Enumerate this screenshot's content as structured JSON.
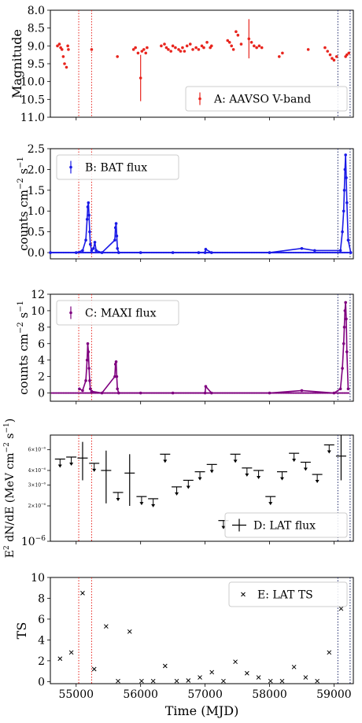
{
  "chart_data": [
    {
      "type": "scatter",
      "panel": "A",
      "legend": "A: AAVSO V-band",
      "legend_position": "lower-right",
      "ylabel": "Magnitude",
      "ylim": [
        11.0,
        8.0
      ],
      "y_inverted": true,
      "yticks": [
        8.0,
        8.5,
        9.0,
        9.5,
        10.0,
        10.5,
        11.0
      ],
      "ytick_labels": [
        "8.0",
        "8.5",
        "9.0",
        "9.5",
        "10.0",
        "10.5",
        "11.0"
      ],
      "color": "#e8251e",
      "series": [
        {
          "name": "A: AAVSO V-band",
          "x": [
            54710,
            54740,
            54760,
            54780,
            54800,
            54820,
            54850,
            54870,
            54880,
            55240,
            55640,
            55890,
            55920,
            55960,
            56000,
            56020,
            56050,
            56080,
            56100,
            56320,
            56370,
            56400,
            56430,
            56470,
            56500,
            56540,
            56590,
            56620,
            56650,
            56680,
            56720,
            56770,
            56810,
            56860,
            56900,
            56950,
            56980,
            57030,
            57080,
            57100,
            57350,
            57380,
            57410,
            57440,
            57480,
            57510,
            57560,
            57680,
            57720,
            57760,
            57800,
            57840,
            57880,
            58150,
            58200,
            58600,
            58860,
            58900,
            58940,
            58970,
            59000,
            59040,
            59180,
            59200,
            59230
          ],
          "y": [
            9.0,
            8.95,
            9.05,
            9.1,
            9.3,
            9.5,
            9.6,
            9.0,
            9.1,
            9.1,
            9.3,
            9.1,
            9.05,
            9.2,
            9.9,
            9.15,
            9.1,
            9.2,
            9.05,
            9.0,
            8.95,
            9.05,
            9.1,
            9.15,
            9.0,
            9.05,
            9.1,
            9.15,
            9.05,
            9.15,
            9.0,
            8.95,
            9.1,
            9.05,
            9.1,
            9.0,
            9.05,
            8.9,
            9.05,
            9.0,
            8.85,
            8.9,
            9.0,
            9.1,
            8.6,
            8.7,
            8.95,
            8.8,
            8.9,
            9.0,
            9.05,
            9.0,
            9.05,
            9.3,
            9.2,
            9.1,
            9.05,
            9.15,
            9.25,
            9.35,
            9.4,
            9.3,
            9.3,
            9.25,
            9.2
          ],
          "errors": [
            0,
            0,
            0,
            0,
            0,
            0,
            0,
            0,
            0,
            0,
            0,
            0,
            0,
            0,
            0.65,
            0,
            0,
            0,
            0,
            0,
            0,
            0,
            0,
            0,
            0,
            0,
            0,
            0,
            0,
            0,
            0,
            0,
            0,
            0,
            0,
            0,
            0,
            0,
            0,
            0,
            0,
            0,
            0,
            0,
            0,
            0,
            0,
            0.55,
            0,
            0,
            0,
            0,
            0,
            0,
            0,
            0,
            0,
            0,
            0,
            0,
            0,
            0,
            0,
            0,
            0
          ]
        }
      ]
    },
    {
      "type": "line",
      "panel": "B",
      "legend": "B: BAT flux",
      "legend_position": "top-left",
      "ylabel": "counts cm^-2 s^-1",
      "ylim": [
        -0.15,
        2.5
      ],
      "yticks": [
        0.0,
        0.5,
        1.0,
        1.5,
        2.0,
        2.5
      ],
      "ytick_labels": [
        "0.0",
        "0.5",
        "1.0",
        "1.5",
        "2.0",
        "2.5"
      ],
      "color": "#1a1ae6",
      "series": [
        {
          "name": "B: BAT flux",
          "x": [
            54600,
            55000,
            55100,
            55150,
            55170,
            55180,
            55190,
            55200,
            55210,
            55220,
            55240,
            55270,
            55290,
            55310,
            55400,
            55600,
            55610,
            55620,
            55630,
            55640,
            55660,
            56000,
            56500,
            56900,
            57000,
            57010,
            57100,
            58000,
            58500,
            58700,
            59100,
            59130,
            59150,
            59160,
            59170,
            59180,
            59190,
            59200,
            59220,
            59260
          ],
          "y": [
            0.0,
            0.0,
            0.05,
            0.3,
            0.8,
            1.1,
            1.2,
            0.9,
            0.5,
            0.2,
            0.05,
            0.1,
            0.25,
            0.05,
            0.0,
            0.3,
            0.6,
            0.7,
            0.4,
            0.1,
            0.0,
            0.0,
            0.0,
            0.0,
            0.0,
            0.08,
            0.0,
            0.0,
            0.1,
            0.05,
            0.05,
            0.5,
            1.0,
            1.5,
            2.0,
            2.35,
            1.8,
            1.2,
            0.3,
            0.0
          ]
        }
      ]
    },
    {
      "type": "line",
      "panel": "C",
      "legend": "C: MAXI flux",
      "legend_position": "top-left",
      "ylabel": "counts cm^-2 s^-1",
      "ylim": [
        -1,
        12
      ],
      "yticks": [
        0,
        2,
        4,
        6,
        8,
        10,
        12
      ],
      "ytick_labels": [
        "0",
        "2",
        "4",
        "6",
        "8",
        "10",
        "12"
      ],
      "color": "#7f007f",
      "series": [
        {
          "name": "C: MAXI flux",
          "x": [
            55050,
            55100,
            55150,
            55170,
            55180,
            55190,
            55200,
            55210,
            55220,
            55240,
            55400,
            55600,
            55610,
            55620,
            55630,
            55640,
            55660,
            56000,
            56500,
            57000,
            57010,
            57100,
            58000,
            58500,
            59000,
            59100,
            59130,
            59150,
            59160,
            59170,
            59180,
            59190,
            59200,
            59220
          ],
          "y": [
            0.5,
            0.3,
            1.5,
            4.0,
            6.0,
            5.0,
            3.0,
            1.5,
            0.5,
            0.2,
            0.0,
            2.0,
            3.5,
            3.8,
            2.0,
            0.5,
            0.0,
            0.0,
            0.0,
            0.0,
            0.8,
            0.0,
            0.0,
            0.3,
            0.0,
            0.5,
            3.0,
            6.0,
            8.0,
            10.0,
            11.0,
            9.0,
            5.0,
            0.5
          ]
        }
      ]
    },
    {
      "type": "scatter",
      "panel": "D",
      "legend": "D: LAT flux",
      "legend_position": "bottom-right",
      "ylabel": "E^2 dN/dE (MeV cm^-2 s^-1)",
      "yscale": "log",
      "ylim": [
        1e-06,
        8e-06
      ],
      "ytick_labels": [
        "10^-6",
        "2×10^-6",
        "3×10^-6",
        "4×10^-6",
        "6×10^-6"
      ],
      "color": "#000000",
      "series": [
        {
          "name": "D: LAT flux",
          "x": [
            54750,
            54925,
            55100,
            55280,
            55465,
            55650,
            55830,
            56015,
            56195,
            56380,
            56560,
            56740,
            56920,
            57105,
            57285,
            57470,
            57650,
            57830,
            58015,
            58195,
            58380,
            58560,
            58740,
            58925,
            59110
          ],
          "y": [
            5e-06,
            5.2e-06,
            5.1e-06,
            4.6e-06,
            4e-06,
            2.6e-06,
            3.8e-06,
            2.4e-06,
            2.3e-06,
            5.5e-06,
            2.9e-06,
            3.3e-06,
            3.9e-06,
            4.5e-06,
            1.5e-06,
            5.5e-06,
            4.2e-06,
            4e-06,
            2.4e-06,
            3.9e-06,
            5.6e-06,
            4.7e-06,
            3.7e-06,
            6.6e-06,
            5.3e-06
          ],
          "upper_limit": [
            true,
            true,
            false,
            true,
            false,
            true,
            false,
            true,
            true,
            true,
            true,
            true,
            true,
            true,
            true,
            true,
            true,
            true,
            true,
            true,
            true,
            true,
            true,
            true,
            false
          ],
          "y_low": [
            null,
            null,
            3.3e-06,
            null,
            2.1e-06,
            null,
            2e-06,
            null,
            null,
            null,
            null,
            null,
            null,
            null,
            null,
            null,
            null,
            null,
            null,
            null,
            null,
            null,
            null,
            null,
            3.3e-06
          ],
          "y_high": [
            null,
            null,
            7e-06,
            null,
            5.9e-06,
            null,
            5.5e-06,
            null,
            null,
            null,
            null,
            null,
            null,
            null,
            null,
            null,
            null,
            null,
            null,
            null,
            null,
            null,
            null,
            null,
            8e-06
          ]
        }
      ]
    },
    {
      "type": "scatter",
      "panel": "E",
      "legend": "E: LAT TS",
      "legend_position": "top-right",
      "ylabel": "TS",
      "xlabel": "Time (MJD)",
      "ylim": [
        -0.2,
        10
      ],
      "yticks": [
        0,
        2,
        4,
        6,
        8,
        10
      ],
      "ytick_labels": [
        "0",
        "2",
        "4",
        "6",
        "8",
        "10"
      ],
      "color": "#000000",
      "series": [
        {
          "name": "E: LAT TS",
          "x": [
            54750,
            54925,
            55100,
            55280,
            55465,
            55650,
            55830,
            56015,
            56195,
            56380,
            56560,
            56740,
            56920,
            57105,
            57285,
            57470,
            57650,
            57830,
            58015,
            58195,
            58380,
            58560,
            58740,
            58925,
            59110
          ],
          "y": [
            2.2,
            2.8,
            8.5,
            1.2,
            5.3,
            0.05,
            4.8,
            0.05,
            0.05,
            1.5,
            0.05,
            0.1,
            0.4,
            0.9,
            0.05,
            1.9,
            0.8,
            0.4,
            0.05,
            0.05,
            1.4,
            0.4,
            0.05,
            2.8,
            7.0
          ]
        }
      ]
    }
  ],
  "shared_x": {
    "xlim": [
      54600,
      59300
    ],
    "xticks": [
      55000,
      56000,
      57000,
      58000,
      59000
    ],
    "xtick_labels": [
      "55000",
      "56000",
      "57000",
      "58000",
      "59000"
    ],
    "xlabel": "Time (MJD)"
  },
  "vlines": {
    "red": [
      55040,
      55240
    ],
    "navy": [
      59060,
      59250
    ],
    "red_color": "#e8251e",
    "navy_color": "#1f2a6b"
  }
}
